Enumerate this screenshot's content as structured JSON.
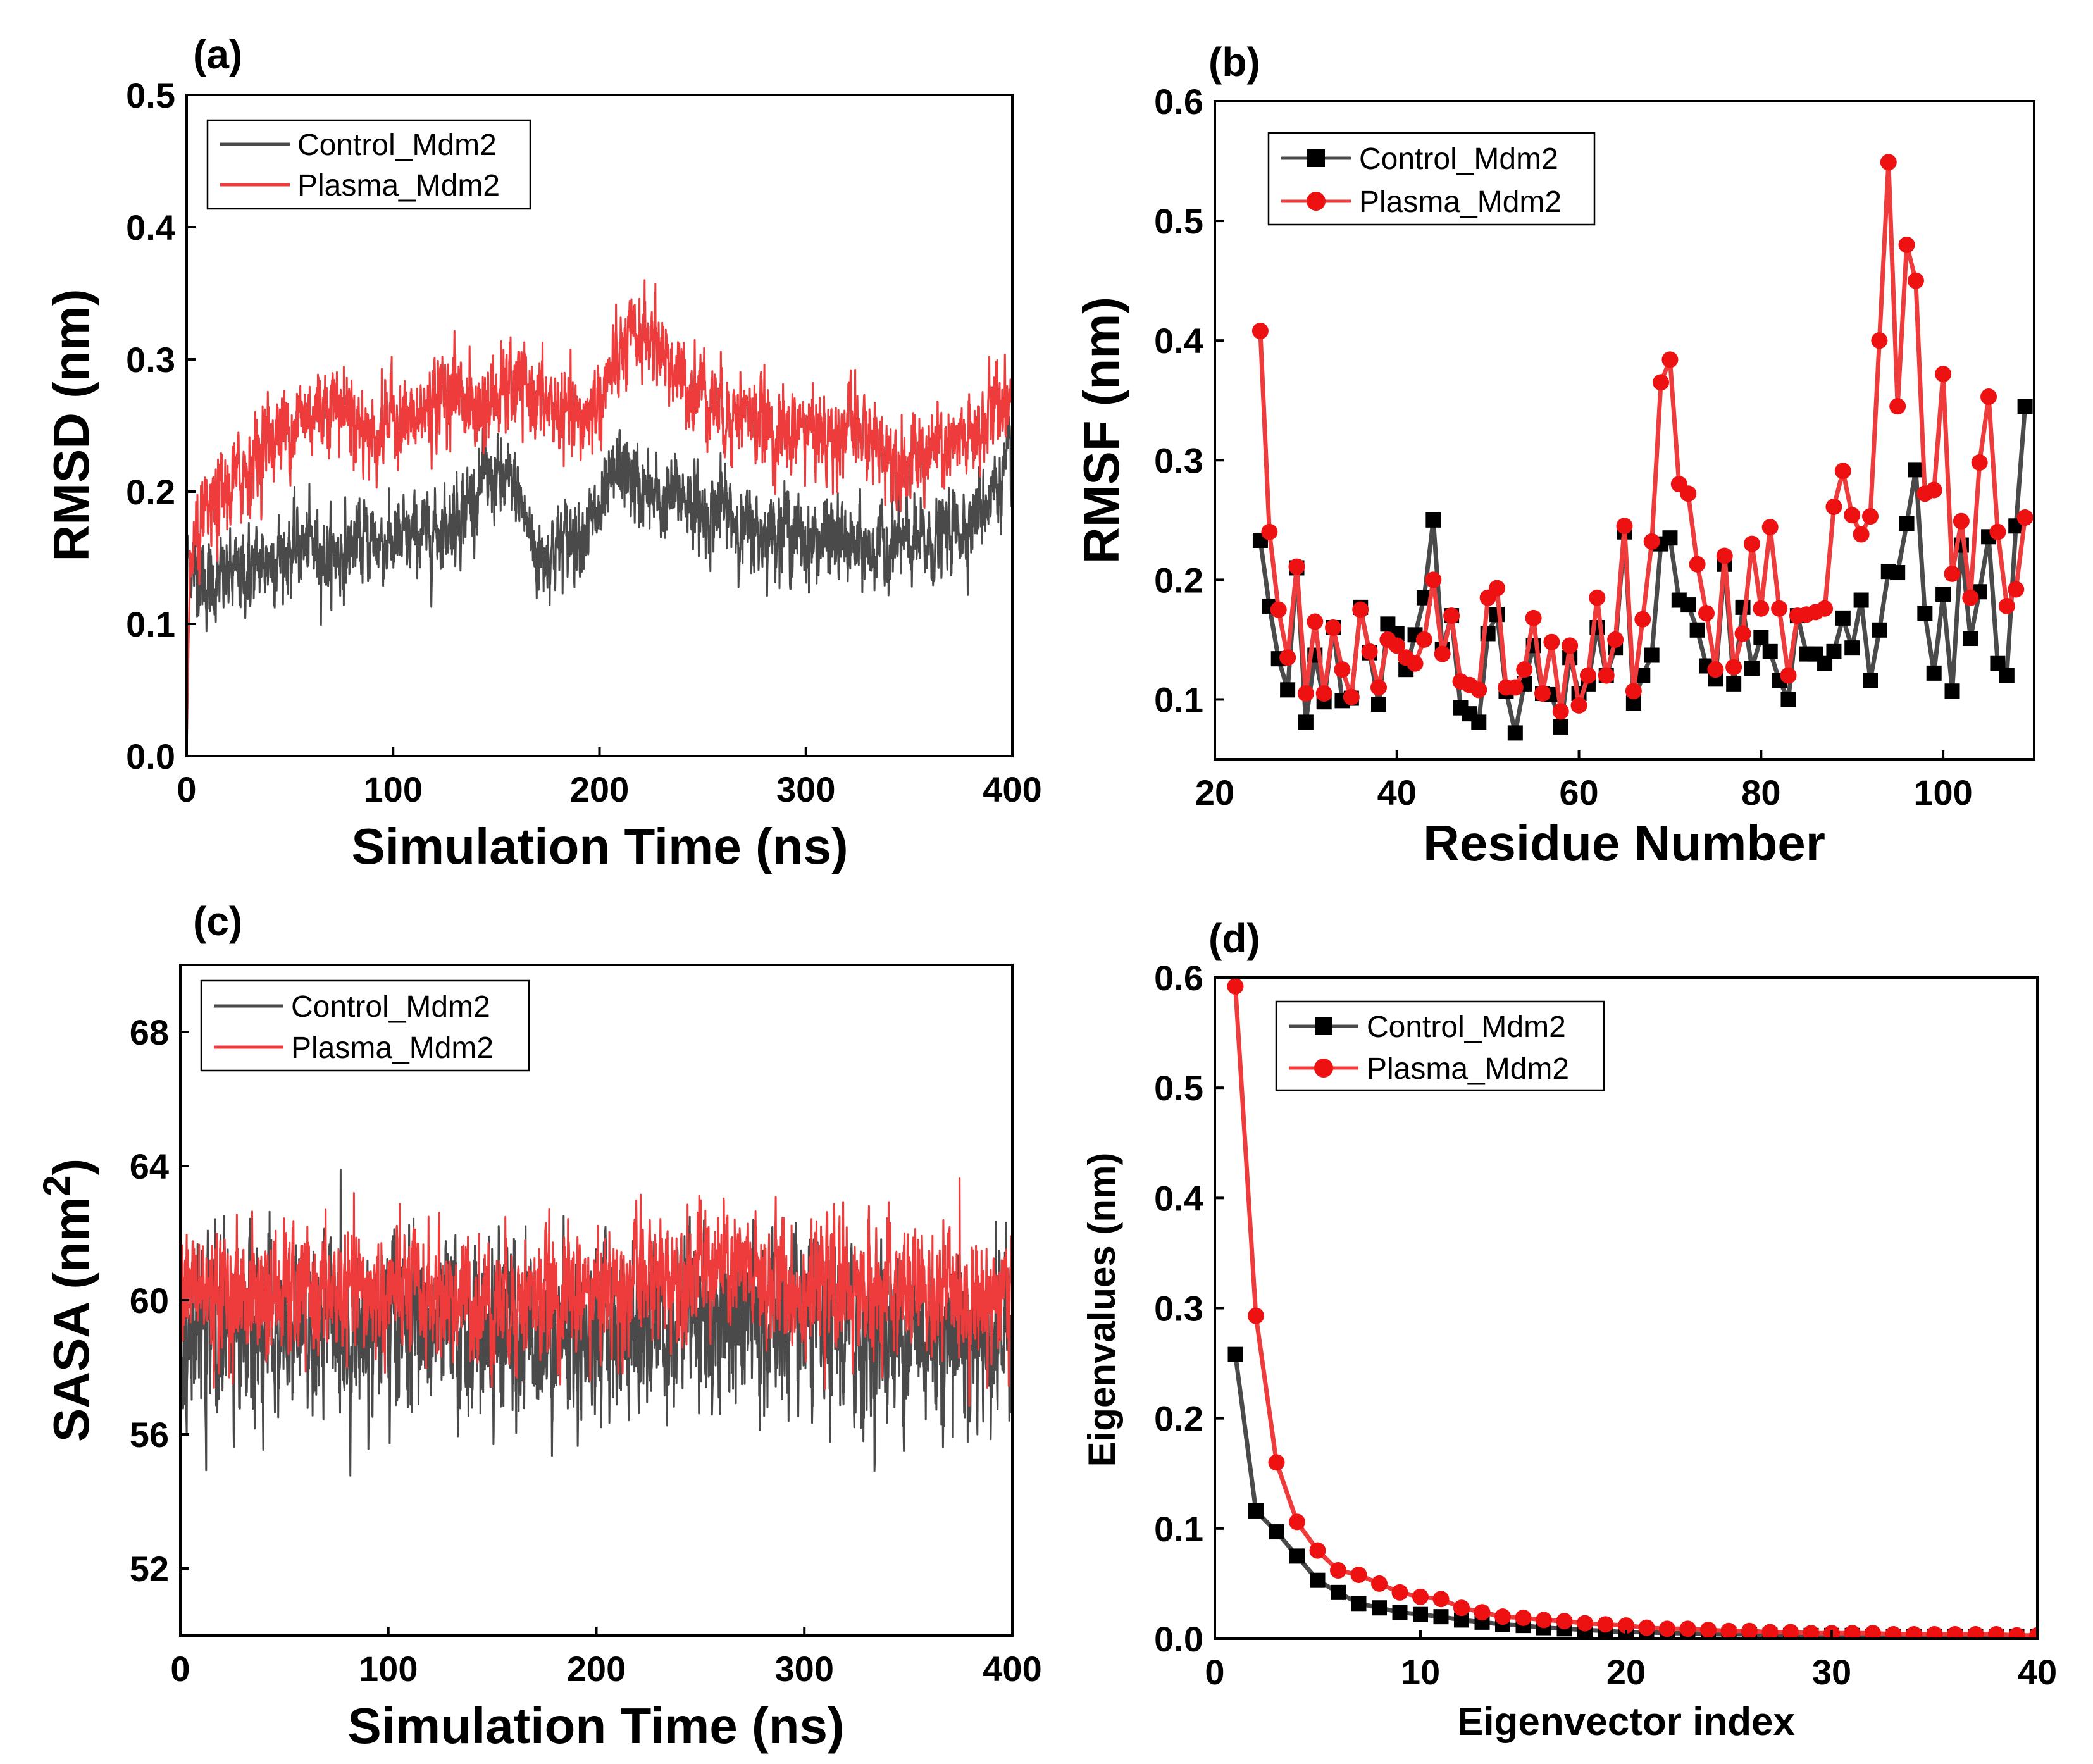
{
  "colors": {
    "control": "#4a4a4a",
    "plasma": "#ee3b3b",
    "control_marker": "#000000",
    "plasma_marker": "#ee1111"
  },
  "chart_data": [
    {
      "id": "a",
      "panel_label": "(a)",
      "type": "line",
      "xlabel": "Simulation Time (ns)",
      "ylabel": "RMSD (nm)",
      "xlim": [
        0,
        400
      ],
      "ylim": [
        0.0,
        0.5
      ],
      "xticks": [
        0,
        100,
        200,
        300,
        400
      ],
      "yticks": [
        0.0,
        0.1,
        0.2,
        0.3,
        0.4,
        0.5
      ],
      "xtick_labels": [
        "0",
        "100",
        "200",
        "300",
        "400"
      ],
      "ytick_labels": [
        "0.0",
        "0.1",
        "0.2",
        "0.3",
        "0.4",
        "0.5"
      ],
      "legend_position": "top-left",
      "legend": [
        "Control_Mdm2",
        "Plasma_Mdm2"
      ],
      "series": [
        {
          "name": "Control_Mdm2",
          "x": [
            0,
            5,
            10,
            20,
            30,
            40,
            50,
            60,
            70,
            80,
            90,
            100,
            110,
            120,
            130,
            140,
            150,
            160,
            170,
            180,
            190,
            200,
            210,
            220,
            230,
            240,
            250,
            260,
            270,
            280,
            290,
            300,
            310,
            320,
            330,
            340,
            350,
            360,
            370,
            380,
            390,
            400
          ],
          "values": [
            0.15,
            0.14,
            0.13,
            0.135,
            0.14,
            0.15,
            0.155,
            0.16,
            0.15,
            0.16,
            0.165,
            0.16,
            0.165,
            0.17,
            0.18,
            0.2,
            0.21,
            0.2,
            0.15,
            0.16,
            0.17,
            0.18,
            0.22,
            0.2,
            0.19,
            0.2,
            0.18,
            0.19,
            0.17,
            0.17,
            0.175,
            0.16,
            0.165,
            0.16,
            0.155,
            0.16,
            0.16,
            0.16,
            0.17,
            0.18,
            0.2,
            0.22
          ],
          "noise": 0.028
        },
        {
          "name": "Plasma_Mdm2",
          "x": [
            0,
            5,
            10,
            20,
            30,
            40,
            50,
            60,
            70,
            80,
            90,
            100,
            110,
            120,
            130,
            140,
            150,
            160,
            170,
            180,
            190,
            200,
            210,
            220,
            230,
            240,
            250,
            260,
            270,
            280,
            290,
            300,
            310,
            320,
            330,
            340,
            350,
            360,
            370,
            380,
            390,
            400
          ],
          "values": [
            0.14,
            0.16,
            0.18,
            0.2,
            0.22,
            0.24,
            0.25,
            0.26,
            0.27,
            0.26,
            0.24,
            0.26,
            0.25,
            0.27,
            0.28,
            0.26,
            0.27,
            0.28,
            0.27,
            0.26,
            0.25,
            0.27,
            0.3,
            0.32,
            0.31,
            0.28,
            0.28,
            0.26,
            0.26,
            0.25,
            0.24,
            0.25,
            0.24,
            0.25,
            0.24,
            0.23,
            0.22,
            0.23,
            0.23,
            0.24,
            0.26,
            0.28
          ],
          "noise": 0.03
        }
      ]
    },
    {
      "id": "b",
      "panel_label": "(b)",
      "type": "line",
      "xlabel": "Residue Number",
      "ylabel": "RMSF (nm)",
      "xlim": [
        20,
        110
      ],
      "ylim": [
        0.05,
        0.6
      ],
      "xticks": [
        20,
        40,
        60,
        80,
        100
      ],
      "yticks": [
        0.1,
        0.2,
        0.3,
        0.4,
        0.5,
        0.6
      ],
      "xtick_labels": [
        "20",
        "40",
        "60",
        "80",
        "100"
      ],
      "ytick_labels": [
        "0.1",
        "0.2",
        "0.3",
        "0.4",
        "0.5",
        "0.6"
      ],
      "legend_position": "top-left",
      "legend": [
        "Control_Mdm2",
        "Plasma_Mdm2"
      ],
      "series": [
        {
          "name": "Control_Mdm2",
          "marker": "square",
          "x": [
            25,
            26,
            27,
            28,
            29,
            30,
            31,
            32,
            33,
            34,
            35,
            36,
            37,
            38,
            39,
            40,
            41,
            42,
            43,
            44,
            45,
            46,
            47,
            48,
            49,
            50,
            51,
            52,
            53,
            54,
            55,
            56,
            57,
            58,
            59,
            60,
            61,
            62,
            63,
            64,
            65,
            66,
            67,
            68,
            69,
            70,
            71,
            72,
            73,
            74,
            75,
            76,
            77,
            78,
            79,
            80,
            81,
            82,
            83,
            84,
            85,
            86,
            87,
            88,
            89,
            90,
            91,
            92,
            93,
            94,
            95,
            96,
            97,
            98,
            99,
            100,
            101,
            102,
            103,
            104,
            105,
            106,
            107,
            108,
            109
          ],
          "values": [
            0.233,
            0.178,
            0.134,
            0.108,
            0.21,
            0.081,
            0.137,
            0.098,
            0.16,
            0.099,
            0.101,
            0.177,
            0.139,
            0.096,
            0.163,
            0.155,
            0.125,
            0.154,
            0.185,
            0.25,
            0.142,
            0.17,
            0.093,
            0.088,
            0.081,
            0.155,
            0.171,
            0.107,
            0.072,
            0.113,
            0.145,
            0.105,
            0.104,
            0.077,
            0.135,
            0.105,
            0.113,
            0.16,
            0.12,
            0.143,
            0.24,
            0.097,
            0.12,
            0.137,
            0.23,
            0.235,
            0.183,
            0.179,
            0.158,
            0.128,
            0.117,
            0.213,
            0.113,
            0.177,
            0.126,
            0.152,
            0.14,
            0.116,
            0.1,
            0.17,
            0.138,
            0.138,
            0.13,
            0.14,
            0.168,
            0.143,
            0.183,
            0.116,
            0.158,
            0.207,
            0.206,
            0.247,
            0.292,
            0.172,
            0.122,
            0.188,
            0.107,
            0.229,
            0.151,
            0.19,
            0.236,
            0.13,
            0.12,
            0.245,
            0.345
          ]
        },
        {
          "name": "Plasma_Mdm2",
          "marker": "circle",
          "x": [
            25,
            26,
            27,
            28,
            29,
            30,
            31,
            32,
            33,
            34,
            35,
            36,
            37,
            38,
            39,
            40,
            41,
            42,
            43,
            44,
            45,
            46,
            47,
            48,
            49,
            50,
            51,
            52,
            53,
            54,
            55,
            56,
            57,
            58,
            59,
            60,
            61,
            62,
            63,
            64,
            65,
            66,
            67,
            68,
            69,
            70,
            71,
            72,
            73,
            74,
            75,
            76,
            77,
            78,
            79,
            80,
            81,
            82,
            83,
            84,
            85,
            86,
            87,
            88,
            89,
            90,
            91,
            92,
            93,
            94,
            95,
            96,
            97,
            98,
            99,
            100,
            101,
            102,
            103,
            104,
            105,
            106,
            107,
            108,
            109
          ],
          "values": [
            0.408,
            0.24,
            0.175,
            0.135,
            0.211,
            0.105,
            0.165,
            0.105,
            0.16,
            0.125,
            0.102,
            0.175,
            0.14,
            0.11,
            0.15,
            0.145,
            0.135,
            0.13,
            0.15,
            0.2,
            0.138,
            0.17,
            0.115,
            0.112,
            0.108,
            0.185,
            0.193,
            0.11,
            0.11,
            0.125,
            0.168,
            0.105,
            0.148,
            0.09,
            0.145,
            0.095,
            0.12,
            0.185,
            0.12,
            0.15,
            0.245,
            0.107,
            0.167,
            0.232,
            0.365,
            0.384,
            0.28,
            0.272,
            0.213,
            0.172,
            0.125,
            0.22,
            0.127,
            0.155,
            0.23,
            0.176,
            0.244,
            0.176,
            0.12,
            0.17,
            0.171,
            0.173,
            0.176,
            0.261,
            0.291,
            0.254,
            0.238,
            0.253,
            0.4,
            0.549,
            0.345,
            0.48,
            0.45,
            0.272,
            0.275,
            0.372,
            0.205,
            0.249,
            0.185,
            0.298,
            0.353,
            0.24,
            0.178,
            0.192,
            0.252
          ]
        }
      ]
    },
    {
      "id": "c",
      "panel_label": "(c)",
      "type": "line",
      "xlabel": "Simulation Time (ns)",
      "ylabel_main": "SASA (nm",
      "ylabel_sup": "2",
      "ylabel_end": ")",
      "xlim": [
        0,
        400
      ],
      "ylim": [
        50,
        70
      ],
      "xticks": [
        0,
        100,
        200,
        300,
        400
      ],
      "yticks": [
        52,
        56,
        60,
        64,
        68
      ],
      "xtick_labels": [
        "0",
        "100",
        "200",
        "300",
        "400"
      ],
      "ytick_labels": [
        "52",
        "56",
        "60",
        "64",
        "68"
      ],
      "legend_position": "top-left",
      "legend": [
        "Control_Mdm2",
        "Plasma_Mdm2"
      ],
      "series": [
        {
          "name": "Control_Mdm2",
          "x": [
            0,
            50,
            100,
            150,
            200,
            250,
            300,
            350,
            400
          ],
          "values": [
            59,
            59,
            59.2,
            59,
            59.1,
            59.5,
            59,
            59,
            59
          ],
          "noise": 2.3
        },
        {
          "name": "Plasma_Mdm2",
          "x": [
            0,
            50,
            100,
            150,
            200,
            250,
            300,
            350,
            400
          ],
          "values": [
            60.3,
            60.1,
            60.2,
            60,
            60.2,
            61,
            60.4,
            60.2,
            60
          ],
          "noise": 1.7
        }
      ]
    },
    {
      "id": "d",
      "panel_label": "(d)",
      "type": "line",
      "xlabel": "Eigenvector index",
      "ylabel": "Eigenvalues (nm)",
      "xlim": [
        0,
        40
      ],
      "ylim": [
        0.0,
        0.6
      ],
      "xticks": [
        0,
        10,
        20,
        30,
        40
      ],
      "yticks": [
        0.0,
        0.1,
        0.2,
        0.3,
        0.4,
        0.5,
        0.6
      ],
      "xtick_labels": [
        "0",
        "10",
        "20",
        "30",
        "40"
      ],
      "ytick_labels": [
        "0.0",
        "0.1",
        "0.2",
        "0.3",
        "0.4",
        "0.5",
        "0.6"
      ],
      "legend_position": "top-left",
      "legend": [
        "Control_Mdm2",
        "Plasma_Mdm2"
      ],
      "series": [
        {
          "name": "Control_Mdm2",
          "marker": "square",
          "x": [
            1,
            2,
            3,
            4,
            5,
            6,
            7,
            8,
            9,
            10,
            11,
            12,
            13,
            14,
            15,
            16,
            17,
            18,
            19,
            20,
            21,
            22,
            23,
            24,
            25,
            26,
            27,
            28,
            29,
            30,
            31,
            32,
            33,
            34,
            35,
            36,
            37,
            38,
            39,
            40
          ],
          "values": [
            0.258,
            0.116,
            0.097,
            0.075,
            0.053,
            0.042,
            0.032,
            0.028,
            0.024,
            0.022,
            0.02,
            0.017,
            0.015,
            0.013,
            0.012,
            0.01,
            0.009,
            0.008,
            0.007,
            0.006,
            0.006,
            0.005,
            0.005,
            0.004,
            0.004,
            0.004,
            0.003,
            0.003,
            0.003,
            0.003,
            0.003,
            0.002,
            0.002,
            0.002,
            0.002,
            0.002,
            0.002,
            0.002,
            0.002,
            0.002
          ]
        },
        {
          "name": "Plasma_Mdm2",
          "marker": "circle",
          "x": [
            1,
            2,
            3,
            4,
            5,
            6,
            7,
            8,
            9,
            10,
            11,
            12,
            13,
            14,
            15,
            16,
            17,
            18,
            19,
            20,
            21,
            22,
            23,
            24,
            25,
            26,
            27,
            28,
            29,
            30,
            31,
            32,
            33,
            34,
            35,
            36,
            37,
            38,
            39,
            40
          ],
          "values": [
            0.592,
            0.293,
            0.16,
            0.106,
            0.08,
            0.062,
            0.058,
            0.05,
            0.042,
            0.038,
            0.036,
            0.028,
            0.024,
            0.02,
            0.019,
            0.017,
            0.016,
            0.014,
            0.013,
            0.012,
            0.01,
            0.009,
            0.009,
            0.008,
            0.007,
            0.007,
            0.006,
            0.006,
            0.005,
            0.005,
            0.005,
            0.005,
            0.004,
            0.004,
            0.004,
            0.004,
            0.004,
            0.004,
            0.003,
            0.003
          ]
        }
      ]
    }
  ]
}
